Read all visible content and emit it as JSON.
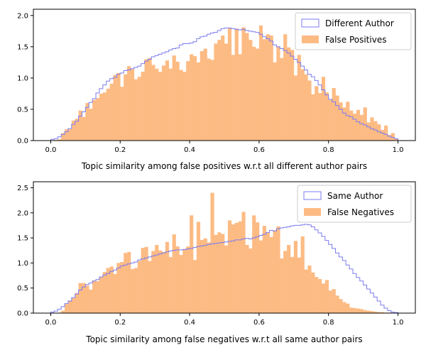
{
  "colors": {
    "hist_fill": "#fdbb84",
    "step_line": "#7b7bf0",
    "legend_border": "#cccccc",
    "axis": "#000000"
  },
  "chart_data": [
    {
      "type": "histogram",
      "xlabel": "Topic similarity among false positives w.r.t all different author pairs",
      "ylabel": "",
      "xlim": [
        -0.05,
        1.05
      ],
      "ylim": [
        0,
        2.1
      ],
      "xticks": [
        0.0,
        0.2,
        0.4,
        0.6,
        0.8,
        1.0
      ],
      "xtick_labels": [
        "0.0",
        "0.2",
        "0.4",
        "0.6",
        "0.8",
        "1.0"
      ],
      "yticks": [
        0.0,
        0.5,
        1.0,
        1.5,
        2.0
      ],
      "ytick_labels": [
        "0.0",
        "0.5",
        "1.0",
        "1.5",
        "2.0"
      ],
      "legend_position": "top-right",
      "bins": {
        "start": 0.0,
        "width": 0.01,
        "count": 100
      },
      "series": [
        {
          "name": "Different Author",
          "kind": "step",
          "values": [
            0.02,
            0.03,
            0.06,
            0.1,
            0.14,
            0.19,
            0.26,
            0.31,
            0.39,
            0.46,
            0.53,
            0.61,
            0.67,
            0.76,
            0.83,
            0.89,
            0.95,
            0.99,
            1.01,
            1.06,
            1.08,
            1.12,
            1.13,
            1.15,
            1.17,
            1.19,
            1.23,
            1.27,
            1.3,
            1.34,
            1.36,
            1.38,
            1.4,
            1.42,
            1.45,
            1.47,
            1.48,
            1.53,
            1.55,
            1.55,
            1.56,
            1.58,
            1.63,
            1.66,
            1.67,
            1.7,
            1.72,
            1.73,
            1.76,
            1.79,
            1.8,
            1.8,
            1.79,
            1.78,
            1.77,
            1.78,
            1.76,
            1.75,
            1.74,
            1.73,
            1.7,
            1.66,
            1.63,
            1.59,
            1.53,
            1.5,
            1.47,
            1.44,
            1.4,
            1.35,
            1.3,
            1.25,
            1.19,
            1.13,
            1.06,
            1.02,
            0.96,
            0.89,
            0.81,
            0.73,
            0.66,
            0.62,
            0.56,
            0.5,
            0.44,
            0.4,
            0.38,
            0.34,
            0.3,
            0.27,
            0.25,
            0.22,
            0.19,
            0.17,
            0.14,
            0.12,
            0.1,
            0.07,
            0.05,
            0.03
          ]
        },
        {
          "name": "False Positives",
          "kind": "bar",
          "values": [
            0.0,
            0.01,
            0.02,
            0.12,
            0.18,
            0.18,
            0.32,
            0.35,
            0.48,
            0.38,
            0.6,
            0.51,
            0.65,
            0.68,
            0.75,
            0.77,
            0.83,
            0.91,
            1.05,
            1.08,
            0.86,
            1.06,
            1.19,
            1.14,
            0.98,
            1.02,
            1.1,
            1.3,
            1.32,
            1.21,
            1.15,
            1.1,
            1.2,
            1.28,
            1.15,
            1.36,
            1.26,
            1.13,
            1.1,
            1.27,
            1.38,
            1.35,
            1.25,
            1.43,
            1.47,
            1.31,
            1.29,
            1.55,
            1.61,
            1.68,
            1.55,
            1.8,
            1.37,
            1.79,
            1.38,
            1.81,
            1.72,
            1.61,
            1.5,
            1.47,
            1.84,
            1.62,
            1.7,
            1.68,
            1.25,
            1.5,
            1.32,
            1.7,
            1.49,
            1.45,
            1.04,
            1.37,
            1.14,
            1.06,
            0.96,
            0.74,
            0.87,
            0.76,
            1.02,
            0.77,
            0.65,
            0.84,
            0.72,
            0.61,
            0.53,
            0.62,
            0.48,
            0.43,
            0.49,
            0.41,
            0.53,
            0.29,
            0.37,
            0.31,
            0.26,
            0.17,
            0.24,
            0.09,
            0.12,
            0.03
          ]
        }
      ]
    },
    {
      "type": "histogram",
      "xlabel": "Topic similarity among false negatives w.r.t all same author pairs",
      "ylabel": "",
      "xlim": [
        -0.05,
        1.05
      ],
      "ylim": [
        0,
        2.62
      ],
      "xticks": [
        0.0,
        0.2,
        0.4,
        0.6,
        0.8,
        1.0
      ],
      "xtick_labels": [
        "0.0",
        "0.2",
        "0.4",
        "0.6",
        "0.8",
        "1.0"
      ],
      "yticks": [
        0.0,
        0.5,
        1.0,
        1.5,
        2.0,
        2.5
      ],
      "ytick_labels": [
        "0.0",
        "0.5",
        "1.0",
        "1.5",
        "2.0",
        "2.5"
      ],
      "legend_position": "top-right",
      "bins": {
        "start": 0.0,
        "width": 0.01,
        "count": 100
      },
      "series": [
        {
          "name": "Same Author",
          "kind": "step",
          "values": [
            0.02,
            0.04,
            0.08,
            0.13,
            0.19,
            0.24,
            0.31,
            0.38,
            0.46,
            0.52,
            0.57,
            0.6,
            0.64,
            0.67,
            0.72,
            0.76,
            0.79,
            0.83,
            0.86,
            0.9,
            0.94,
            0.96,
            0.98,
            1.0,
            1.02,
            1.06,
            1.08,
            1.1,
            1.12,
            1.14,
            1.16,
            1.18,
            1.2,
            1.22,
            1.24,
            1.25,
            1.26,
            1.26,
            1.27,
            1.28,
            1.29,
            1.31,
            1.33,
            1.34,
            1.35,
            1.37,
            1.38,
            1.39,
            1.4,
            1.41,
            1.42,
            1.43,
            1.44,
            1.46,
            1.46,
            1.48,
            1.49,
            1.48,
            1.5,
            1.52,
            1.55,
            1.57,
            1.61,
            1.65,
            1.64,
            1.68,
            1.7,
            1.71,
            1.72,
            1.74,
            1.75,
            1.75,
            1.76,
            1.77,
            1.76,
            1.72,
            1.66,
            1.6,
            1.53,
            1.45,
            1.37,
            1.29,
            1.2,
            1.12,
            1.05,
            0.96,
            0.88,
            0.79,
            0.71,
            0.64,
            0.56,
            0.48,
            0.4,
            0.32,
            0.24,
            0.16,
            0.1,
            0.05,
            0.02,
            0.01
          ]
        },
        {
          "name": "False Negatives",
          "kind": "bar",
          "values": [
            0.0,
            0.0,
            0.01,
            0.05,
            0.18,
            0.25,
            0.3,
            0.4,
            0.6,
            0.6,
            0.55,
            0.47,
            0.65,
            0.64,
            0.72,
            0.82,
            0.9,
            0.93,
            0.78,
            1.0,
            1.02,
            1.2,
            1.22,
            0.88,
            0.9,
            1.04,
            1.3,
            1.32,
            1.04,
            1.24,
            1.36,
            1.25,
            1.22,
            1.42,
            1.12,
            1.57,
            1.33,
            1.16,
            1.28,
            1.33,
            1.95,
            1.06,
            1.82,
            1.46,
            1.49,
            1.41,
            2.4,
            1.56,
            1.61,
            1.58,
            1.35,
            1.85,
            1.77,
            1.8,
            1.83,
            2.02,
            1.36,
            1.29,
            1.95,
            1.81,
            1.45,
            1.74,
            1.6,
            1.52,
            1.65,
            1.73,
            1.09,
            1.24,
            1.36,
            1.12,
            1.44,
            1.11,
            1.53,
            0.87,
            0.95,
            0.81,
            0.72,
            0.68,
            0.59,
            0.66,
            0.45,
            0.48,
            0.35,
            0.28,
            0.22,
            0.19,
            0.11,
            0.1,
            0.09,
            0.08,
            0.06,
            0.05,
            0.04,
            0.03,
            0.02,
            0.02,
            0.01,
            0.01,
            0.0,
            0.0
          ]
        }
      ]
    }
  ]
}
